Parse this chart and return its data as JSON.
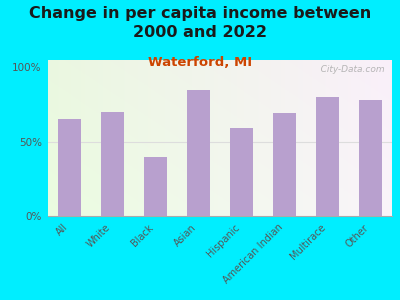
{
  "title": "Change in per capita income between\n2000 and 2022",
  "subtitle": "Waterford, MI",
  "categories": [
    "All",
    "White",
    "Black",
    "Asian",
    "Hispanic",
    "American Indian",
    "Multirace",
    "Other"
  ],
  "values": [
    65,
    70,
    40,
    85,
    59,
    69,
    80,
    78
  ],
  "bar_color": "#b8a0ce",
  "bg_outer": "#00eeff",
  "title_fontsize": 11.5,
  "subtitle_fontsize": 9.5,
  "subtitle_color": "#cc4400",
  "title_color": "#1a1a1a",
  "tick_color": "#555555",
  "ylim": [
    0,
    105
  ],
  "yticks": [
    0,
    50,
    100
  ],
  "ytick_labels": [
    "0%",
    "50%",
    "100%"
  ],
  "watermark": "   City-Data.com",
  "watermark_color": "#aaaaaa",
  "grid_color": "#dddddd"
}
